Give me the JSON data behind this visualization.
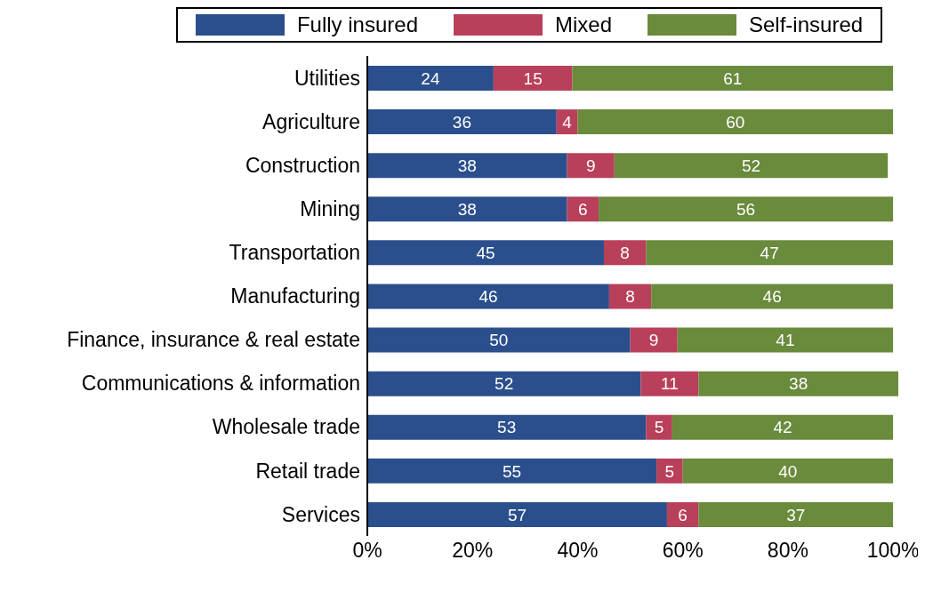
{
  "chart_data": {
    "type": "bar",
    "orientation": "horizontal",
    "stacked": true,
    "data_labels": true,
    "legend": "top",
    "grid": false,
    "categories": [
      "Utilities",
      "Agriculture",
      "Construction",
      "Mining",
      "Transportation",
      "Manufacturing",
      "Finance, insurance & real estate",
      "Communications & information",
      "Wholesale trade",
      "Retail trade",
      "Services"
    ],
    "series": [
      {
        "name": "Fully insured",
        "color": "#2b4f8c",
        "values": [
          24,
          36,
          38,
          38,
          45,
          46,
          50,
          52,
          53,
          55,
          57
        ]
      },
      {
        "name": "Mixed",
        "color": "#b8405a",
        "values": [
          15,
          4,
          9,
          6,
          8,
          8,
          9,
          11,
          5,
          5,
          6
        ]
      },
      {
        "name": "Self-insured",
        "color": "#6a8a3c",
        "values": [
          61,
          60,
          52,
          56,
          47,
          46,
          41,
          38,
          42,
          40,
          37
        ]
      }
    ],
    "xlim": [
      0,
      101
    ],
    "xticks": [
      {
        "value": 0,
        "label": "0%"
      },
      {
        "value": 20,
        "label": "20%"
      },
      {
        "value": 40,
        "label": "40%"
      },
      {
        "value": 60,
        "label": "60%"
      },
      {
        "value": 80,
        "label": "80%"
      },
      {
        "value": 100,
        "label": "100%"
      }
    ]
  }
}
